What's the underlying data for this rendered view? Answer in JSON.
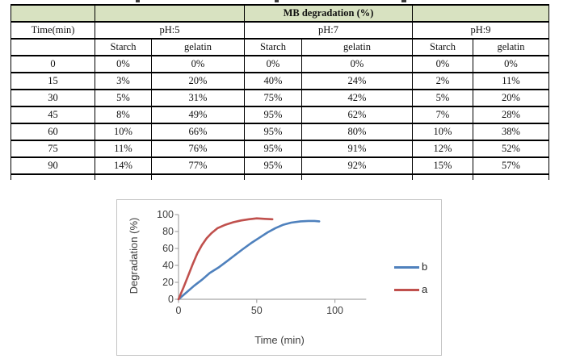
{
  "table": {
    "title": "MB degradation (%)",
    "row_label_header": "Time(min)",
    "groups": [
      "pH:5",
      "pH:7",
      "pH:9"
    ],
    "sub_headers": [
      "Starch",
      "gelatin",
      "Starch",
      "gelatin",
      "Starch",
      "gelatin"
    ],
    "header_fill": "#d8e2c1",
    "rows": [
      {
        "time": "0",
        "values": [
          "0%",
          "0%",
          "0%",
          "0%",
          "0%",
          "0%"
        ]
      },
      {
        "time": "15",
        "values": [
          "3%",
          "20%",
          "40%",
          "24%",
          "2%",
          "11%"
        ]
      },
      {
        "time": "30",
        "values": [
          "5%",
          "31%",
          "75%",
          "42%",
          "5%",
          "20%"
        ]
      },
      {
        "time": "45",
        "values": [
          "8%",
          "49%",
          "95%",
          "62%",
          "7%",
          "28%"
        ]
      },
      {
        "time": "60",
        "values": [
          "10%",
          "66%",
          "95%",
          "80%",
          "10%",
          "38%"
        ]
      },
      {
        "time": "75",
        "values": [
          "11%",
          "76%",
          "95%",
          "91%",
          "12%",
          "52%"
        ]
      },
      {
        "time": "90",
        "values": [
          "14%",
          "77%",
          "95%",
          "92%",
          "15%",
          "57%"
        ]
      }
    ]
  },
  "chart_data": {
    "type": "line",
    "title": "",
    "xlabel": "Time (min)",
    "ylabel": "Degradation (%)",
    "xlim": [
      0,
      120
    ],
    "ylim": [
      0,
      100
    ],
    "x_ticks": [
      0,
      50,
      100
    ],
    "y_ticks": [
      0,
      20,
      40,
      60,
      80,
      100
    ],
    "grid": false,
    "legend_position": "right",
    "series": [
      {
        "name": "b",
        "color": "#4F81BD",
        "x": [
          0,
          5,
          10,
          15,
          20,
          26,
          31,
          36,
          41,
          47,
          52,
          57,
          62,
          67,
          72,
          78,
          83,
          87,
          90
        ],
        "y": [
          0,
          8,
          16,
          23,
          31,
          38,
          45,
          52,
          59,
          67,
          73,
          79,
          84,
          88,
          90.5,
          92,
          92.5,
          92.5,
          92
        ]
      },
      {
        "name": "a",
        "color": "#C0504D",
        "x": [
          0,
          3,
          6,
          9,
          12,
          15,
          18,
          21,
          25,
          30,
          35,
          40,
          45,
          50,
          55,
          60
        ],
        "y": [
          0,
          13,
          27,
          41,
          54,
          64,
          72,
          78,
          84,
          88,
          91,
          93,
          94.5,
          95.5,
          95,
          94.5
        ]
      }
    ]
  }
}
